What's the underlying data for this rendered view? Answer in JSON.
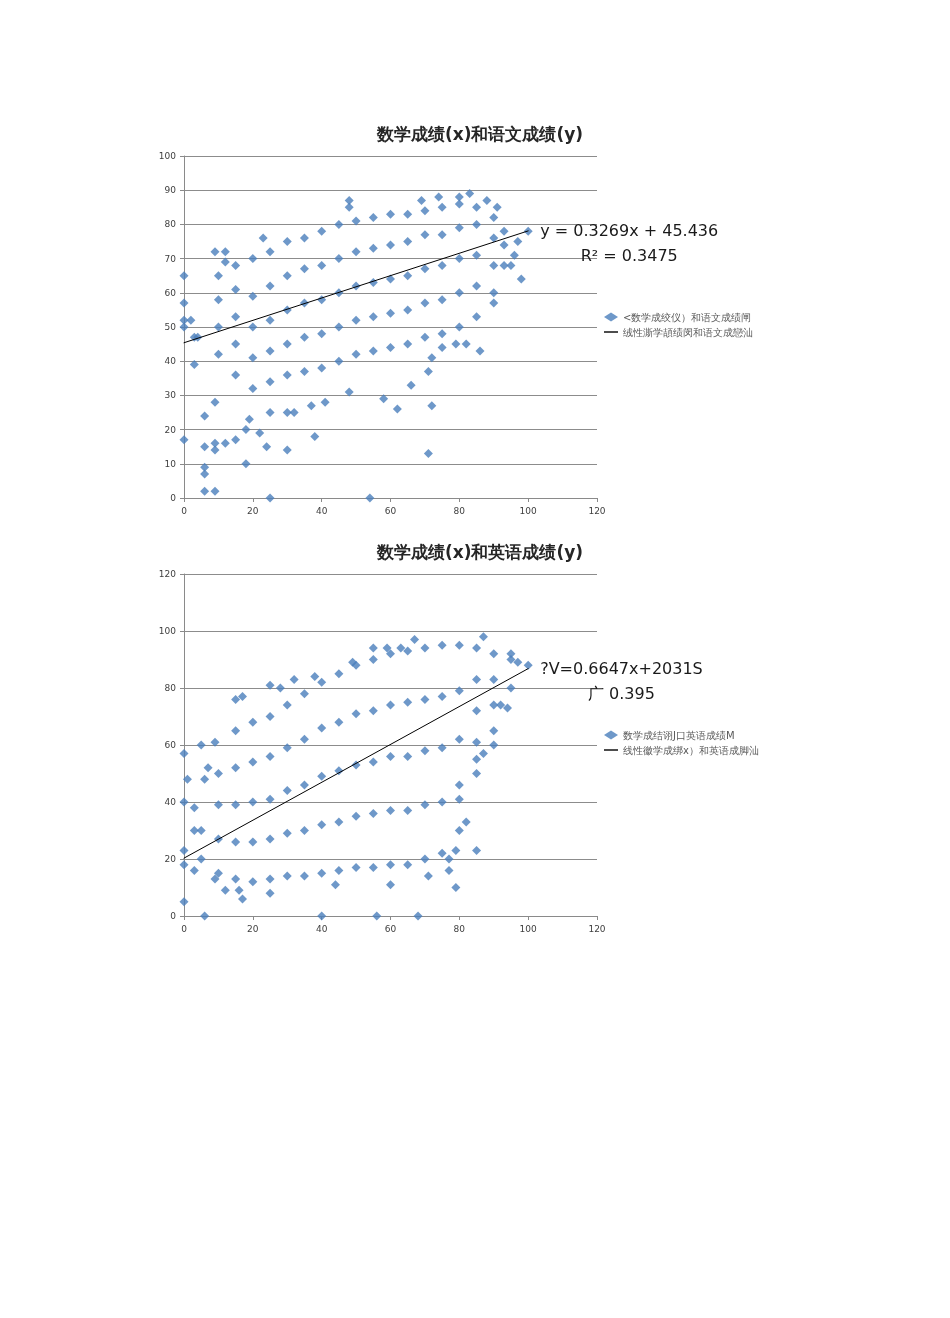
{
  "chart_data": [
    {
      "type": "scatter",
      "title": "数学成绩(x)和语文成绩(y)",
      "xlim": [
        0,
        120
      ],
      "xticks": [
        0,
        20,
        40,
        60,
        80,
        100,
        120
      ],
      "ylim": [
        0,
        100
      ],
      "yticks": [
        0,
        10,
        20,
        30,
        40,
        50,
        60,
        70,
        80,
        90,
        100
      ],
      "grid": "y",
      "legend": "right",
      "annotations": [
        "y = 0.3269x + 45.436",
        "R² = 0.3475"
      ],
      "series": [
        {
          "name": "<数学成绞仪）和语文成绩闸",
          "color": "#4a7ebb",
          "marker": "diamond",
          "x": [
            0,
            0,
            0,
            0,
            0,
            2,
            3,
            3,
            4,
            6,
            6,
            6,
            6,
            6,
            9,
            9,
            9,
            9,
            9,
            12,
            12,
            15,
            18,
            18,
            19,
            22,
            24,
            25,
            25,
            30,
            30,
            32,
            38,
            37,
            41,
            48,
            54,
            58,
            62,
            66,
            71,
            72,
            71,
            72,
            75,
            79,
            82,
            86,
            90,
            98,
            96,
            95,
            97,
            100,
            83,
            80,
            48,
            48,
            74,
            88,
            91,
            69,
            23,
            12,
            10,
            10,
            10,
            10,
            15,
            15,
            15,
            15,
            15,
            20,
            20,
            20,
            20,
            20,
            25,
            25,
            25,
            25,
            25,
            30,
            30,
            30,
            30,
            30,
            35,
            35,
            35,
            35,
            35,
            40,
            40,
            40,
            40,
            40,
            45,
            45,
            45,
            45,
            45,
            50,
            50,
            50,
            50,
            50,
            55,
            55,
            55,
            55,
            55,
            60,
            60,
            60,
            60,
            60,
            65,
            65,
            65,
            65,
            65,
            70,
            70,
            70,
            70,
            70,
            75,
            75,
            75,
            75,
            75,
            80,
            80,
            80,
            80,
            80,
            85,
            85,
            85,
            85,
            85,
            90,
            90,
            90,
            90,
            93,
            93,
            93
          ],
          "values": [
            65,
            57,
            52,
            50,
            17,
            52,
            47,
            39,
            47,
            24,
            15,
            9,
            7,
            2,
            2,
            14,
            16,
            28,
            72,
            72,
            16,
            17,
            10,
            20,
            23,
            19,
            15,
            0,
            25,
            14,
            25,
            25,
            18,
            27,
            28,
            31,
            0,
            29,
            26,
            33,
            13,
            27,
            37,
            41,
            44,
            45,
            45,
            43,
            57,
            64,
            71,
            68,
            75,
            78,
            89,
            88,
            87,
            85,
            88,
            87,
            85,
            87,
            76,
            69,
            42,
            50,
            58,
            65,
            36,
            45,
            53,
            61,
            68,
            32,
            41,
            50,
            59,
            70,
            34,
            43,
            52,
            62,
            72,
            36,
            45,
            55,
            65,
            75,
            37,
            47,
            57,
            67,
            76,
            38,
            48,
            58,
            68,
            78,
            40,
            50,
            60,
            70,
            80,
            42,
            52,
            62,
            72,
            81,
            43,
            53,
            63,
            73,
            82,
            44,
            54,
            64,
            74,
            83,
            45,
            55,
            65,
            75,
            83,
            47,
            57,
            67,
            77,
            84,
            48,
            58,
            68,
            77,
            85,
            50,
            60,
            70,
            79,
            86,
            53,
            62,
            71,
            80,
            85,
            60,
            68,
            76,
            82,
            68,
            74,
            78
          ]
        },
        {
          "name": "绒性澌学頡绩闵和语文成戀汕",
          "type": "line",
          "color": "#000000",
          "marker": "none",
          "x": [
            0,
            100
          ],
          "values": [
            45.4,
            78.1
          ]
        }
      ]
    },
    {
      "type": "scatter",
      "title": "数学成绩(x)和英语成绩(y)",
      "xlim": [
        0,
        120
      ],
      "xticks": [
        0,
        20,
        40,
        60,
        80,
        100,
        120
      ],
      "ylim": [
        0,
        120
      ],
      "yticks": [
        0,
        20,
        40,
        60,
        80,
        100,
        120
      ],
      "grid": "y",
      "legend": "right",
      "annotations": [
        "?V=0.6647x+2031S",
        "广 0.395"
      ],
      "series": [
        {
          "name": "数学成结诩J口英语成绩M",
          "color": "#4a7ebb",
          "marker": "diamond",
          "x": [
            0,
            1,
            0,
            0,
            0,
            0,
            6,
            40,
            56,
            68,
            5,
            9,
            3,
            3,
            3,
            6,
            7,
            15,
            17,
            25,
            28,
            32,
            38,
            49,
            55,
            59,
            63,
            67,
            87,
            95,
            97,
            100,
            94,
            92,
            90,
            87,
            85,
            80,
            82,
            79,
            85,
            77,
            77,
            79,
            71,
            60,
            44,
            25,
            17,
            16,
            12,
            9,
            5,
            5,
            10,
            10,
            10,
            10,
            15,
            15,
            15,
            15,
            15,
            20,
            20,
            20,
            20,
            20,
            25,
            25,
            25,
            25,
            25,
            30,
            30,
            30,
            30,
            30,
            35,
            35,
            35,
            35,
            35,
            40,
            40,
            40,
            40,
            40,
            45,
            45,
            45,
            45,
            45,
            50,
            50,
            50,
            50,
            50,
            55,
            55,
            55,
            55,
            55,
            60,
            60,
            60,
            60,
            60,
            65,
            65,
            65,
            65,
            65,
            70,
            70,
            70,
            70,
            70,
            75,
            75,
            75,
            75,
            75,
            80,
            80,
            80,
            80,
            80,
            85,
            85,
            85,
            85,
            85,
            90,
            90,
            90,
            90,
            95,
            95
          ],
          "values": [
            57,
            48,
            40,
            23,
            18,
            5,
            0,
            0,
            0,
            0,
            60,
            61,
            30,
            38,
            16,
            48,
            52,
            76,
            77,
            81,
            80,
            83,
            84,
            89,
            94,
            94,
            94,
            97,
            98,
            92,
            89,
            88,
            73,
            74,
            60,
            57,
            55,
            41,
            33,
            23,
            23,
            20,
            16,
            10,
            14,
            11,
            11,
            8,
            6,
            9,
            9,
            13,
            20,
            30,
            15,
            27,
            39,
            50,
            13,
            26,
            39,
            52,
            65,
            12,
            26,
            40,
            54,
            68,
            13,
            27,
            41,
            56,
            70,
            14,
            29,
            44,
            59,
            74,
            14,
            30,
            46,
            62,
            78,
            15,
            32,
            49,
            66,
            82,
            16,
            33,
            51,
            68,
            85,
            17,
            35,
            53,
            71,
            88,
            17,
            36,
            54,
            72,
            90,
            18,
            37,
            56,
            74,
            92,
            18,
            37,
            56,
            75,
            93,
            20,
            39,
            58,
            76,
            94,
            22,
            40,
            59,
            77,
            95,
            30,
            46,
            62,
            79,
            95,
            50,
            61,
            72,
            83,
            94,
            65,
            74,
            83,
            92,
            80,
            90
          ]
        },
        {
          "name": "线性徽学成绑x）和英语成脚汕",
          "type": "line",
          "color": "#000000",
          "marker": "none",
          "x": [
            0,
            100
          ],
          "values": [
            20.3,
            86.8
          ]
        }
      ]
    }
  ]
}
